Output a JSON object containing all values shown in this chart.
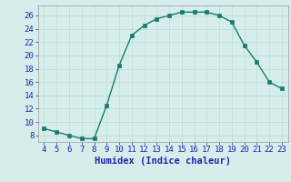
{
  "x": [
    4,
    5,
    6,
    7,
    8,
    9,
    10,
    11,
    12,
    13,
    14,
    15,
    16,
    17,
    18,
    19,
    20,
    21,
    22,
    23
  ],
  "y": [
    9,
    8.5,
    8,
    7.5,
    7.5,
    12.5,
    18.5,
    23,
    24.5,
    25.5,
    26,
    26.5,
    26.5,
    26.5,
    26,
    25,
    21.5,
    19,
    16,
    15
  ],
  "line_color": "#1a7a6e",
  "marker_color": "#1a7a6e",
  "bg_color": "#d6eeeb",
  "grid_color": "#b8dad6",
  "xlabel": "Humidex (Indice chaleur)",
  "xlim": [
    3.5,
    23.5
  ],
  "ylim": [
    7,
    27.5
  ],
  "yticks": [
    8,
    10,
    12,
    14,
    16,
    18,
    20,
    22,
    24,
    26
  ],
  "xticks": [
    4,
    5,
    6,
    7,
    8,
    9,
    10,
    11,
    12,
    13,
    14,
    15,
    16,
    17,
    18,
    19,
    20,
    21,
    22,
    23
  ],
  "font_color": "#2222aa",
  "xlabel_fontsize": 7.5,
  "tick_fontsize": 6.5
}
